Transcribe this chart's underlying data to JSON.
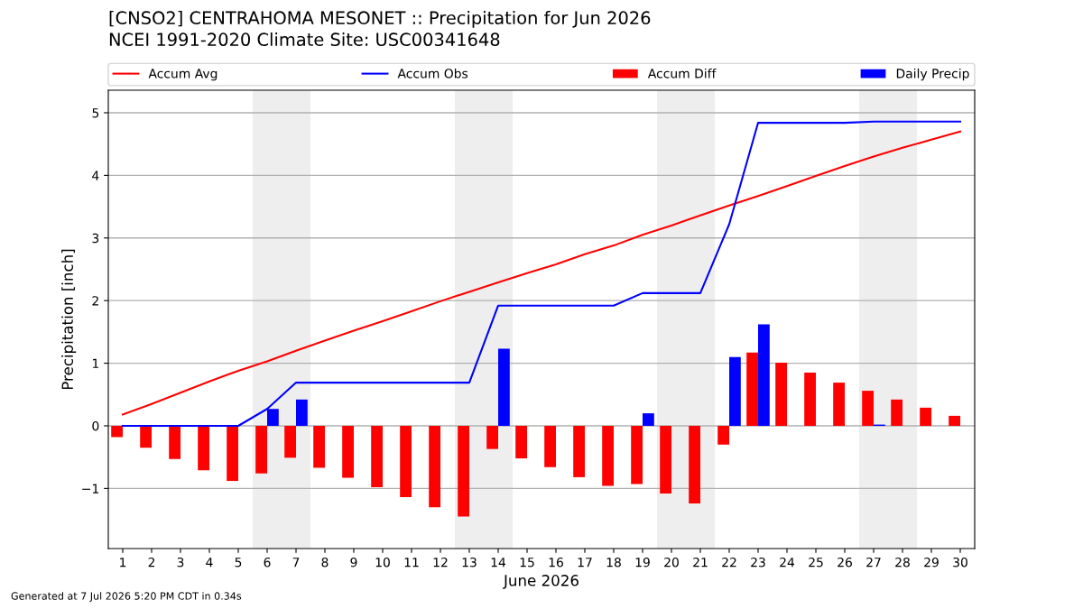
{
  "chart_data": {
    "type": "bar",
    "title": "[CNSO2] CENTRAHOMA MESONET :: Precipitation for Jun 2026",
    "subtitle": "NCEI 1991-2020 Climate Site: USC00341648",
    "xlabel": "June 2026",
    "ylabel": "Precipitation [inch]",
    "x": [
      1,
      2,
      3,
      4,
      5,
      6,
      7,
      8,
      9,
      10,
      11,
      12,
      13,
      14,
      15,
      16,
      17,
      18,
      19,
      20,
      21,
      22,
      23,
      24,
      25,
      26,
      27,
      28,
      29,
      30
    ],
    "series": [
      {
        "name": "Accum Avg",
        "type": "line",
        "color": "#ff0000",
        "values": [
          0.18,
          0.35,
          0.53,
          0.71,
          0.88,
          1.03,
          1.2,
          1.36,
          1.52,
          1.67,
          1.83,
          1.99,
          2.14,
          2.29,
          2.44,
          2.58,
          2.74,
          2.88,
          3.05,
          3.2,
          3.36,
          3.52,
          3.67,
          3.83,
          3.99,
          4.15,
          4.3,
          4.44,
          4.57,
          4.7
        ]
      },
      {
        "name": "Accum Obs",
        "type": "line",
        "color": "#0000ff",
        "values": [
          0,
          0,
          0,
          0,
          0,
          0.27,
          0.69,
          0.69,
          0.69,
          0.69,
          0.69,
          0.69,
          0.69,
          1.92,
          1.92,
          1.92,
          1.92,
          1.92,
          2.12,
          2.12,
          2.12,
          3.22,
          4.84,
          4.84,
          4.84,
          4.84,
          4.86,
          4.86,
          4.86,
          4.86
        ]
      },
      {
        "name": "Accum Diff",
        "color": "#ff0000",
        "values": [
          -0.18,
          -0.35,
          -0.53,
          -0.71,
          -0.88,
          -0.76,
          -0.51,
          -0.67,
          -0.83,
          -0.98,
          -1.14,
          -1.3,
          -1.45,
          -0.37,
          -0.52,
          -0.66,
          -0.82,
          -0.96,
          -0.93,
          -1.08,
          -1.24,
          -0.3,
          1.17,
          1.01,
          0.85,
          0.69,
          0.56,
          0.42,
          0.29,
          0.16
        ]
      },
      {
        "name": "Daily Precip",
        "color": "#0000ff",
        "values": [
          null,
          null,
          null,
          null,
          null,
          0.27,
          0.42,
          null,
          null,
          null,
          null,
          null,
          null,
          1.23,
          null,
          null,
          null,
          null,
          0.2,
          null,
          null,
          1.1,
          1.62,
          null,
          null,
          null,
          0.02,
          null,
          null,
          null
        ]
      }
    ],
    "xlim": [
      0.5,
      30.5
    ],
    "xticks": [
      1,
      2,
      3,
      4,
      5,
      6,
      7,
      8,
      9,
      10,
      11,
      12,
      13,
      14,
      15,
      16,
      17,
      18,
      19,
      20,
      21,
      22,
      23,
      24,
      25,
      26,
      27,
      28,
      29,
      30
    ],
    "ylim": [
      -1.96,
      5.36
    ],
    "yticks": [
      {
        "value": -1,
        "label": "−1"
      },
      0,
      1,
      2,
      3,
      4,
      5
    ],
    "grid": "y",
    "legend": "top",
    "bands": [
      {
        "axis": "x",
        "from": 5.5,
        "to": 7.5,
        "color": "#eeeeee"
      },
      {
        "axis": "x",
        "from": 12.5,
        "to": 14.5,
        "color": "#eeeeee"
      },
      {
        "axis": "x",
        "from": 19.5,
        "to": 21.5,
        "color": "#eeeeee"
      },
      {
        "axis": "x",
        "from": 26.5,
        "to": 28.5,
        "color": "#eeeeee"
      }
    ],
    "annotations": [
      "Generated at 7 Jul 2026 5:20 PM CDT in 0.34s"
    ]
  }
}
